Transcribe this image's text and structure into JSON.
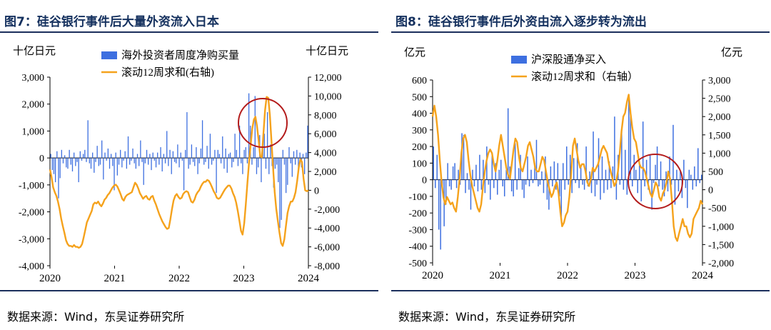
{
  "source": "数据来源：Wind，东吴证券研究所",
  "chart_data": [
    {
      "type": "bar+line",
      "title": "图7：硅谷银行事件后大量外资流入日本",
      "left_unit": "十亿日元",
      "right_unit": "十亿日元",
      "series": [
        {
          "name": "海外投资者周度净购买量",
          "kind": "bar",
          "axis": "left",
          "color": "#3d6fe0",
          "values": [
            150,
            -450,
            -600,
            -900,
            250,
            -1500,
            -750,
            300,
            -200,
            100,
            -350,
            -400,
            300,
            -250,
            -500,
            200,
            -300,
            -150,
            -900,
            250,
            -100,
            150,
            300,
            -150,
            1400,
            -200,
            -400,
            200,
            -550,
            -150,
            450,
            -300,
            -250,
            650,
            -800,
            200,
            -100,
            350,
            -400,
            150,
            -300,
            -1200,
            200,
            -650,
            -250,
            300,
            -350,
            -100,
            250,
            -400,
            800,
            -250,
            -100,
            350,
            -200,
            -400,
            150,
            -300,
            650,
            -150,
            -1000,
            -200,
            300,
            -250,
            150,
            -450,
            200,
            -100,
            -350,
            200,
            -250,
            400,
            -500,
            150,
            -200,
            1000,
            -300,
            300,
            -600,
            250,
            -150,
            -200,
            500,
            -350,
            200,
            -100,
            -1200,
            300,
            1700,
            -400,
            -250,
            500,
            -150,
            -300,
            400,
            -600,
            -200,
            350,
            1400,
            -250,
            -150,
            450,
            -400,
            900,
            -250,
            -100,
            300,
            -1300,
            300,
            150,
            -200,
            800,
            -400,
            350,
            -550,
            150,
            200,
            -350,
            -150,
            900,
            300,
            -300,
            1200,
            -200,
            -600,
            300,
            400,
            -200,
            2400,
            1200,
            -250,
            400,
            2300,
            -600,
            -350,
            850,
            -900,
            300,
            900,
            -400,
            1700,
            -600,
            500,
            -300,
            -1100,
            -400,
            -250,
            -900,
            -2600,
            -2300,
            300,
            -250,
            -1300,
            -1000,
            400,
            -200,
            -700,
            250,
            -250,
            300,
            -400,
            200,
            -350,
            150,
            -600,
            200,
            1200
          ]
        },
        {
          "name": "滚动12周求和(右轴)",
          "kind": "line",
          "axis": "right",
          "color": "#f5a21c",
          "values": [
            2200,
            1400,
            300,
            -200,
            -600,
            -1200,
            -2000,
            -3000,
            -3800,
            -4500,
            -5300,
            -5700,
            -5900,
            -5900,
            -6000,
            -5800,
            -6000,
            -6000,
            -6100,
            -6000,
            -5700,
            -5000,
            -4200,
            -3400,
            -3000,
            -2600,
            -2200,
            -1500,
            -1300,
            -1400,
            -1200,
            -1500,
            -1700,
            -1400,
            -1000,
            -800,
            -500,
            -300,
            0,
            300,
            500,
            600,
            400,
            0,
            -400,
            -900,
            -1100,
            -700,
            -500,
            -400,
            -300,
            -200,
            300,
            800,
            600,
            200,
            -300,
            -600,
            -900,
            -700,
            -600,
            -900,
            -1000,
            -700,
            -600,
            -1100,
            -1500,
            -2000,
            -2500,
            -2900,
            -3300,
            -3600,
            -3900,
            -4100,
            -4000,
            -3100,
            -2000,
            -1100,
            -600,
            -400,
            -700,
            -900,
            -800,
            -400,
            -200,
            -100,
            -200,
            -700,
            -1200,
            -1300,
            -1000,
            -500,
            -200,
            0,
            400,
            700,
            900,
            900,
            1100,
            1000,
            700,
            300,
            -100,
            -400,
            -800,
            -900,
            -800,
            -500,
            -200,
            100,
            300,
            500,
            500,
            200,
            -300,
            -700,
            -1300,
            -2200,
            -3200,
            -4300,
            -4700,
            -3500,
            -1500,
            800,
            2900,
            4800,
            6500,
            7500,
            7800,
            6800,
            5300,
            3600,
            3500,
            6000,
            8500,
            9900,
            9800,
            8000,
            5200,
            2400,
            -200,
            -2000,
            -3300,
            -4500,
            -5600,
            -5900,
            -5200,
            -3800,
            -2400,
            -1700,
            -1200,
            -1200,
            -800,
            -200,
            1000,
            2400,
            3300,
            3000,
            1200,
            0,
            -100,
            0
          ]
        }
      ],
      "x_tick_labels": [
        "2020",
        "2021",
        "2022",
        "2023",
        "2024"
      ],
      "left_axis": {
        "ylim": [
          -4000,
          3000
        ],
        "ticks": [
          -4000,
          -3000,
          -2000,
          -1000,
          0,
          1000,
          2000,
          3000
        ],
        "tick_labels": [
          "-4,000",
          "-3,000",
          "-2,000",
          "-1,000",
          "0",
          "1,000",
          "2,000",
          "3,000"
        ]
      },
      "right_axis": {
        "ylim": [
          -8000,
          12000
        ],
        "ticks": [
          -8000,
          -6000,
          -4000,
          -2000,
          0,
          2000,
          4000,
          6000,
          8000,
          10000,
          12000
        ],
        "tick_labels": [
          "-8,000",
          "-6,000",
          "-4,000",
          "-2,000",
          "0",
          "2,000",
          "4,000",
          "6,000",
          "8,000",
          "10,000",
          "12,000"
        ]
      },
      "legend": "top-center",
      "annotation": "red circle around early-mid 2023 peak",
      "grid": false
    },
    {
      "type": "bar+line",
      "title": "图8：硅谷银行事件后外资由流入逐步转为流出",
      "left_unit": "亿元",
      "right_unit": "亿元",
      "series": [
        {
          "name": "沪深股通净买入",
          "kind": "bar",
          "axis": "left",
          "color": "#3d6fe0",
          "values": [
            200,
            -50,
            150,
            -300,
            -420,
            -50,
            -280,
            -150,
            100,
            -40,
            -60,
            80,
            100,
            -50,
            60,
            -30,
            280,
            270,
            -80,
            40,
            -60,
            -180,
            60,
            -40,
            90,
            -70,
            150,
            -60,
            120,
            -80,
            200,
            -30,
            -120,
            160,
            -50,
            100,
            -90,
            60,
            120,
            -40,
            -100,
            60,
            430,
            80,
            -70,
            -100,
            220,
            -60,
            70,
            150,
            -60,
            -110,
            -30,
            140,
            -40,
            60,
            -20,
            100,
            240,
            -40,
            -30,
            50,
            -80,
            140,
            -120,
            -180,
            80,
            -40,
            110,
            -60,
            100,
            -100,
            -250,
            100,
            -60,
            200,
            -30,
            150,
            -80,
            130,
            -20,
            220,
            -50,
            80,
            -30,
            -60,
            200,
            -40,
            50,
            -80,
            290,
            -100,
            -30,
            250,
            -120,
            140,
            -80,
            60,
            -60,
            110,
            -50,
            80,
            380,
            -120,
            150,
            -30,
            300,
            -60,
            180,
            -90,
            490,
            420,
            -40,
            150,
            60,
            -80,
            110,
            -130,
            350,
            -40,
            120,
            -60,
            150,
            -180,
            -20,
            90,
            200,
            -40,
            110,
            -60,
            -100,
            50,
            -70,
            140,
            -30,
            330,
            -150,
            60,
            -70,
            50,
            -110,
            120,
            -50,
            -170,
            60,
            30,
            -60,
            80,
            -40,
            190,
            -20,
            30
          ]
        },
        {
          "name": "滚动12周求和（右轴）",
          "kind": "line",
          "axis": "right",
          "color": "#f5a21c",
          "values": [
            2000,
            2300,
            2000,
            1500,
            800,
            200,
            -200,
            -400,
            -200,
            -300,
            -400,
            -350,
            -500,
            -600,
            -200,
            300,
            1000,
            1400,
            1500,
            1300,
            800,
            400,
            100,
            -100,
            -300,
            -500,
            -600,
            -400,
            100,
            500,
            800,
            1000,
            1100,
            1000,
            700,
            500,
            800,
            1200,
            1500,
            1200,
            900,
            600,
            400,
            300,
            700,
            1100,
            1400,
            1300,
            900,
            600,
            500,
            700,
            900,
            1200,
            1300,
            1100,
            900,
            600,
            500,
            500,
            700,
            900,
            800,
            500,
            200,
            0,
            -200,
            -100,
            100,
            200,
            -100,
            -600,
            -1000,
            -900,
            -700,
            -600,
            -200,
            400,
            1200,
            1400,
            1100,
            800,
            600,
            700,
            700,
            500,
            200,
            100,
            300,
            600,
            500,
            600,
            700,
            900,
            1100,
            1200,
            1100,
            1000,
            700,
            500,
            300,
            100,
            200,
            500,
            1000,
            1600,
            2000,
            2100,
            2400,
            2600,
            2100,
            1700,
            1400,
            1300,
            1000,
            700,
            600,
            600,
            500,
            300,
            100,
            -100,
            -200,
            0,
            200,
            100,
            -200,
            -300,
            -100,
            0,
            200,
            500,
            300,
            -300,
            -1000,
            -1300,
            -1400,
            -1200,
            -1000,
            -800,
            -1000,
            -1000,
            -1200,
            -1300,
            -1200,
            -800,
            -700,
            -600,
            -500,
            -300,
            -400
          ]
        }
      ],
      "x_tick_labels": [
        "2020",
        "2021",
        "2022",
        "2023",
        "2024"
      ],
      "left_axis": {
        "ylim": [
          -500,
          600
        ],
        "ticks": [
          -500,
          -400,
          -300,
          -200,
          -100,
          0,
          100,
          200,
          300,
          400,
          500,
          600
        ],
        "tick_labels": [
          "-500",
          "-400",
          "-300",
          "-200",
          "-100",
          "0",
          "100",
          "200",
          "300",
          "400",
          "500",
          "600"
        ]
      },
      "right_axis": {
        "ylim": [
          -2000,
          3000
        ],
        "ticks": [
          -2000,
          -1500,
          -1000,
          -500,
          0,
          500,
          1000,
          1500,
          2000,
          2500,
          3000
        ],
        "tick_labels": [
          "-2,000",
          "-1,500",
          "-1,000",
          "-500",
          "0",
          "500",
          "1,000",
          "1,500",
          "2,000",
          "2,500",
          "3,000"
        ]
      },
      "legend": "top-center",
      "annotation": "red circle around mid 2023 decline",
      "grid": false
    }
  ]
}
